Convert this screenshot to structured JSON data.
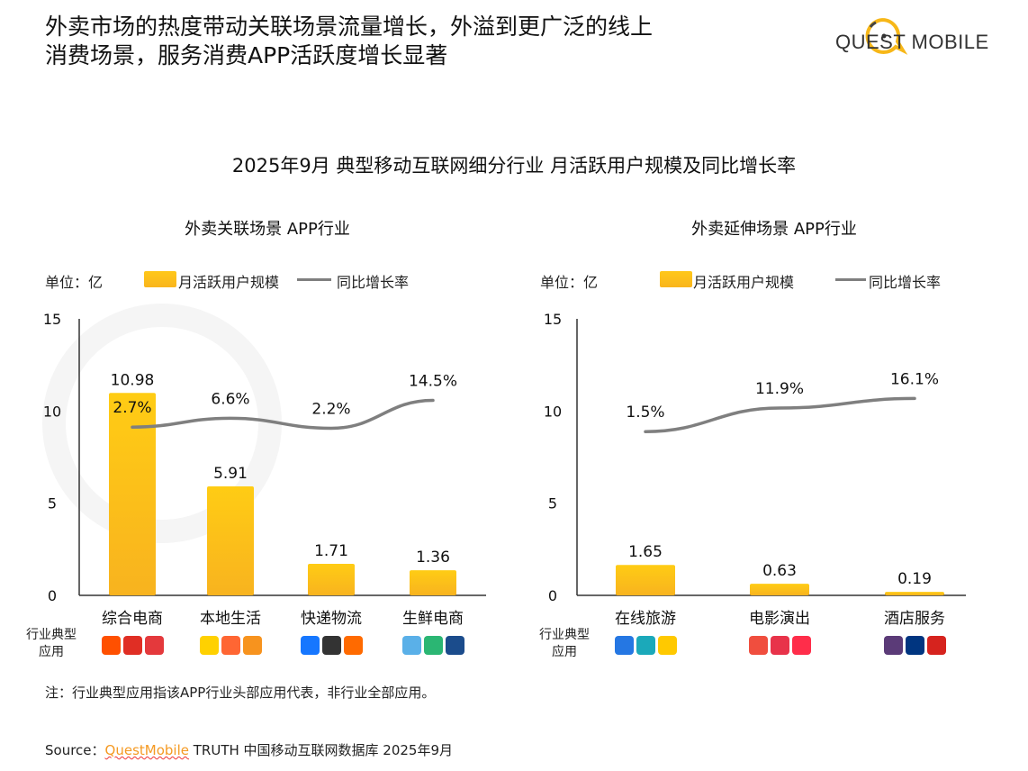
{
  "headline": [
    "外卖市场的热度带动关联场景流量增长，外溢到更广泛的线上",
    "消费场景，服务消费APP活跃度增长显著"
  ],
  "logo": {
    "text": "QUEST MOBILE",
    "accent": "#f7b718"
  },
  "watermark": "QUEST MOBILE",
  "chart_title": "2025年9月 典型移动互联网细分行业 月活跃用户规模及同比增长率",
  "colors": {
    "bar": "#fbbf1a",
    "line": "#7f7f7f"
  },
  "row_label": [
    "行业典型",
    "应用"
  ],
  "chart_data": [
    {
      "type": "bar+line",
      "title": "外卖关联场景 APP行业",
      "unit_label": "单位：亿",
      "legend": [
        "月活跃用户规模",
        "同比增长率"
      ],
      "legend_position": "top",
      "ylim": [
        0,
        15
      ],
      "yticks": [
        "0",
        "5",
        "10",
        "15"
      ],
      "categories": [
        "综合电商",
        "本地生活",
        "快递物流",
        "生鲜电商"
      ],
      "series": [
        {
          "name": "月活跃用户规模",
          "values": [
            10.98,
            5.91,
            1.71,
            1.36
          ],
          "labels": [
            "10.98",
            "5.91",
            "1.71",
            "1.36"
          ]
        },
        {
          "name": "同比增长率",
          "values": [
            2.7,
            6.6,
            2.2,
            14.5
          ],
          "labels": [
            "2.7%",
            "6.6%",
            "2.2%",
            "14.5%"
          ]
        }
      ],
      "apps": [
        [
          {
            "icon": "taobao-icon",
            "color": "#ff5000"
          },
          {
            "icon": "pinduoduo-icon",
            "color": "#e02e24"
          },
          {
            "icon": "jd-icon",
            "color": "#e4393c"
          }
        ],
        [
          {
            "icon": "meituan-icon",
            "color": "#ffd100"
          },
          {
            "icon": "dianping-icon",
            "color": "#ff6633"
          },
          {
            "icon": "life-icon",
            "color": "#f7931e"
          }
        ],
        [
          {
            "icon": "cainiao-icon",
            "color": "#1677ff"
          },
          {
            "icon": "sf-express-icon",
            "color": "#333333"
          },
          {
            "icon": "express-icon",
            "color": "#ff6a00"
          }
        ],
        [
          {
            "icon": "hema-icon",
            "color": "#5ab0e8"
          },
          {
            "icon": "dingdong-icon",
            "color": "#2bb673"
          },
          {
            "icon": "sams-club-icon",
            "color": "#1b4c8c"
          }
        ]
      ]
    },
    {
      "type": "bar+line",
      "title": "外卖延伸场景 APP行业",
      "unit_label": "单位：亿",
      "legend": [
        "月活跃用户规模",
        "同比增长率"
      ],
      "legend_position": "top",
      "ylim": [
        0,
        15
      ],
      "yticks": [
        "0",
        "5",
        "10",
        "15"
      ],
      "categories": [
        "在线旅游",
        "电影演出",
        "酒店服务"
      ],
      "series": [
        {
          "name": "月活跃用户规模",
          "values": [
            1.65,
            0.63,
            0.19
          ],
          "labels": [
            "1.65",
            "0.63",
            "0.19"
          ]
        },
        {
          "name": "同比增长率",
          "values": [
            1.5,
            11.9,
            16.1
          ],
          "labels": [
            "1.5%",
            "11.9%",
            "16.1%"
          ]
        }
      ],
      "apps": [
        [
          {
            "icon": "ctrip-icon",
            "color": "#2577e3"
          },
          {
            "icon": "qunar-icon",
            "color": "#1ba9ba"
          },
          {
            "icon": "fliggy-icon",
            "color": "#ffc900"
          }
        ],
        [
          {
            "icon": "maoyan-icon",
            "color": "#f04e3e"
          },
          {
            "icon": "taopiaopiao-icon",
            "color": "#e8334a"
          },
          {
            "icon": "damai-icon",
            "color": "#ff2d4a"
          }
        ],
        [
          {
            "icon": "huazhu-icon",
            "color": "#5b3b78"
          },
          {
            "icon": "booking-icon",
            "color": "#003580"
          },
          {
            "icon": "jinjiang-icon",
            "color": "#d6231e"
          }
        ]
      ]
    }
  ],
  "footer": {
    "note": "注：行业典型应用指该APP行业头部应用代表，非行业全部应用。",
    "source_prefix": "Source：",
    "source_brand": "QuestMobile",
    "source_rest": " TRUTH 中国移动互联网数据库 2025年9月"
  }
}
